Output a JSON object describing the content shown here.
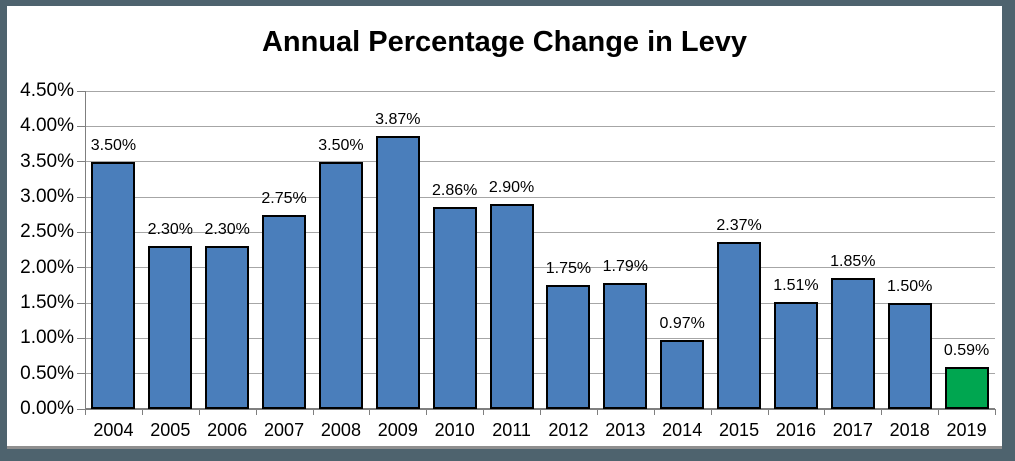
{
  "window": {
    "frame_color": "#4E636E",
    "shadow_color": "#8F8F8F",
    "background": "#FFFFFF"
  },
  "chart_data": {
    "type": "bar",
    "title": "Annual Percentage Change in Levy",
    "categories": [
      "2004",
      "2005",
      "2006",
      "2007",
      "2008",
      "2009",
      "2010",
      "2011",
      "2012",
      "2013",
      "2014",
      "2015",
      "2016",
      "2017",
      "2018",
      "2019"
    ],
    "values": [
      3.5,
      2.3,
      2.3,
      2.75,
      3.5,
      3.87,
      2.86,
      2.9,
      1.75,
      1.79,
      0.97,
      2.37,
      1.51,
      1.85,
      1.5,
      0.59
    ],
    "data_labels": [
      "3.50%",
      "2.30%",
      "2.30%",
      "2.75%",
      "3.50%",
      "3.87%",
      "2.86%",
      "2.90%",
      "1.75%",
      "1.79%",
      "0.97%",
      "2.37%",
      "1.51%",
      "1.85%",
      "1.50%",
      "0.59%"
    ],
    "xlabel": "",
    "ylabel": "",
    "ylim": [
      0,
      4.5
    ],
    "ytick_step": 0.5,
    "ytick_labels": [
      "0.00%",
      "0.50%",
      "1.00%",
      "1.50%",
      "2.00%",
      "2.50%",
      "3.00%",
      "3.50%",
      "4.00%",
      "4.50%"
    ],
    "grid": true,
    "legend": "none",
    "colors": {
      "bar_fill": "#4A7EBB",
      "bar_border": "#000000",
      "highlight_fill": "#00A650",
      "gridline": "#A6A6A6",
      "axis": "#7F7F7F",
      "label_text": "#000000"
    },
    "highlight_index": 15
  }
}
